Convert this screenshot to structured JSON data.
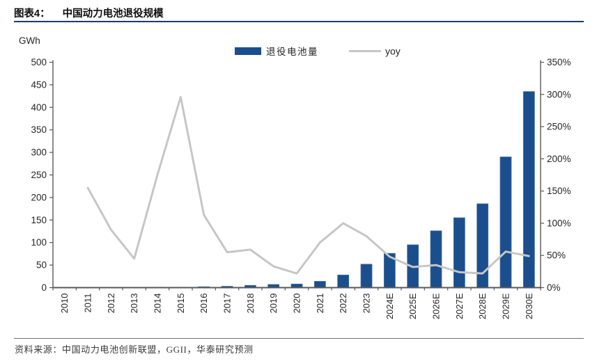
{
  "header": {
    "figure_label": "图表4：",
    "title": "中国动力电池退役规模",
    "underline_color": "#1f3864"
  },
  "chart_data": {
    "type": "bar",
    "subtype": "bar-line-combo",
    "categories": [
      "2010",
      "2011",
      "2012",
      "2013",
      "2014",
      "2015",
      "2016",
      "2017",
      "2018",
      "2019",
      "2020",
      "2021",
      "2022",
      "2023",
      "2024E",
      "2025E",
      "2026E",
      "2027E",
      "2028E",
      "2029E",
      "2030E"
    ],
    "series": [
      {
        "name": "退役电池量",
        "type": "bar",
        "axis": "left",
        "unit": "GWh",
        "color": "#1b4e8d",
        "values": [
          0,
          0,
          0,
          0,
          1,
          1,
          2,
          3,
          5,
          7,
          8,
          14,
          28,
          52,
          76,
          95,
          126,
          155,
          186,
          290,
          435
        ]
      },
      {
        "name": "yoy",
        "type": "line",
        "axis": "right",
        "unit": "%",
        "color": "#c6c6c6",
        "values": [
          null,
          155,
          90,
          45,
          175,
          296,
          113,
          55,
          59,
          33,
          22,
          70,
          100,
          80,
          48,
          32,
          35,
          24,
          22,
          56,
          49
        ]
      }
    ],
    "left_axis": {
      "label": "GWh",
      "min": 0,
      "max": 500,
      "step": 50
    },
    "right_axis": {
      "min": 0,
      "max": 350,
      "step": 50,
      "format": "percent"
    },
    "legend_position": "top-center",
    "grid": false
  },
  "source": {
    "label": "资料来源：",
    "text": "中国动力电池创新联盟，GGII，华泰研究预测"
  }
}
